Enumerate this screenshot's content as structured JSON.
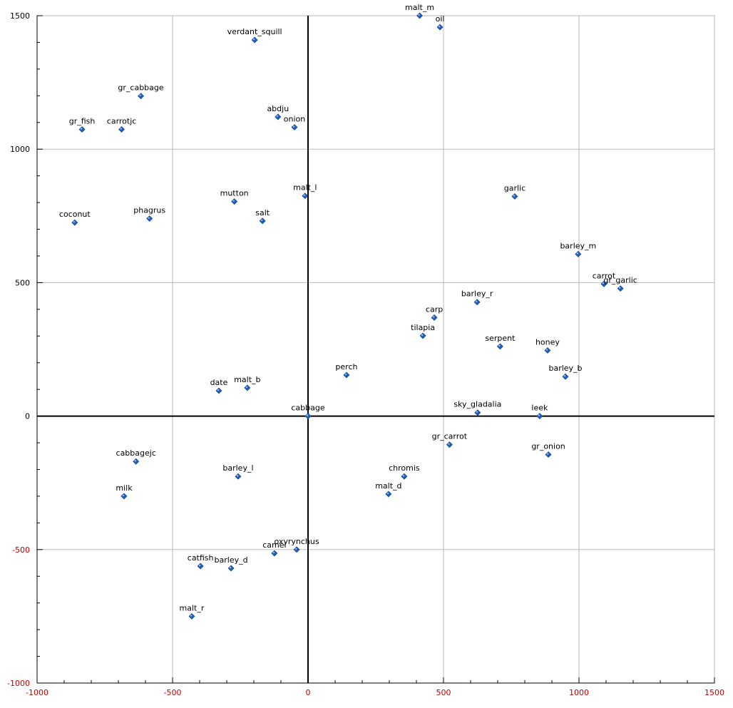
{
  "chart_data": {
    "type": "scatter",
    "title": "",
    "xlabel": "",
    "ylabel": "",
    "xlim": [
      -1000,
      1500
    ],
    "ylim": [
      -1000,
      1500
    ],
    "x_ticks": [
      -1000,
      -500,
      0,
      500,
      1000,
      1500
    ],
    "y_ticks": [
      -1000,
      -500,
      0,
      500,
      1000,
      1500
    ],
    "grid": true,
    "legend": "none",
    "marker_color": "#1f5fbf",
    "points": [
      {
        "label": "malt_m",
        "x": 412,
        "y": 1500
      },
      {
        "label": "oil",
        "x": 487,
        "y": 1457
      },
      {
        "label": "verdant_squill",
        "x": -197,
        "y": 1409
      },
      {
        "label": "gr_cabbage",
        "x": -617,
        "y": 1199
      },
      {
        "label": "abdju",
        "x": -111,
        "y": 1121
      },
      {
        "label": "onion",
        "x": -50,
        "y": 1082
      },
      {
        "label": "gr_fish",
        "x": -834,
        "y": 1074
      },
      {
        "label": "carrotjc",
        "x": -688,
        "y": 1074
      },
      {
        "label": "malt_l",
        "x": -11,
        "y": 825
      },
      {
        "label": "garlic",
        "x": 763,
        "y": 823
      },
      {
        "label": "mutton",
        "x": -272,
        "y": 804
      },
      {
        "label": "salt",
        "x": -168,
        "y": 731
      },
      {
        "label": "phagrus",
        "x": -585,
        "y": 740
      },
      {
        "label": "coconut",
        "x": -861,
        "y": 725
      },
      {
        "label": "barley_m",
        "x": 997,
        "y": 607
      },
      {
        "label": "carrot",
        "x": 1092,
        "y": 495
      },
      {
        "label": "gr_garlic",
        "x": 1153,
        "y": 478
      },
      {
        "label": "barley_r",
        "x": 624,
        "y": 427
      },
      {
        "label": "carp",
        "x": 466,
        "y": 369
      },
      {
        "label": "tilapia",
        "x": 424,
        "y": 301
      },
      {
        "label": "serpent",
        "x": 709,
        "y": 261
      },
      {
        "label": "honey",
        "x": 884,
        "y": 246
      },
      {
        "label": "barley_b",
        "x": 950,
        "y": 148
      },
      {
        "label": "perch",
        "x": 142,
        "y": 154
      },
      {
        "label": "malt_b",
        "x": -224,
        "y": 106
      },
      {
        "label": "date",
        "x": -329,
        "y": 95
      },
      {
        "label": "cabbage",
        "x": 0,
        "y": 0
      },
      {
        "label": "sky_gladalia",
        "x": 626,
        "y": 13
      },
      {
        "label": "leek",
        "x": 855,
        "y": 0
      },
      {
        "label": "gr_carrot",
        "x": 522,
        "y": -107
      },
      {
        "label": "gr_onion",
        "x": 887,
        "y": -144
      },
      {
        "label": "cabbagejc",
        "x": -635,
        "y": -170
      },
      {
        "label": "barley_l",
        "x": -258,
        "y": -226
      },
      {
        "label": "chromis",
        "x": 355,
        "y": -226
      },
      {
        "label": "milk",
        "x": -679,
        "y": -300
      },
      {
        "label": "malt_d",
        "x": 297,
        "y": -292
      },
      {
        "label": "camel",
        "x": -124,
        "y": -514
      },
      {
        "label": "oxyrynchus",
        "x": -42,
        "y": -500
      },
      {
        "label": "catfish",
        "x": -397,
        "y": -562
      },
      {
        "label": "barley_d",
        "x": -284,
        "y": -570
      },
      {
        "label": "malt_r",
        "x": -429,
        "y": -750
      }
    ]
  }
}
